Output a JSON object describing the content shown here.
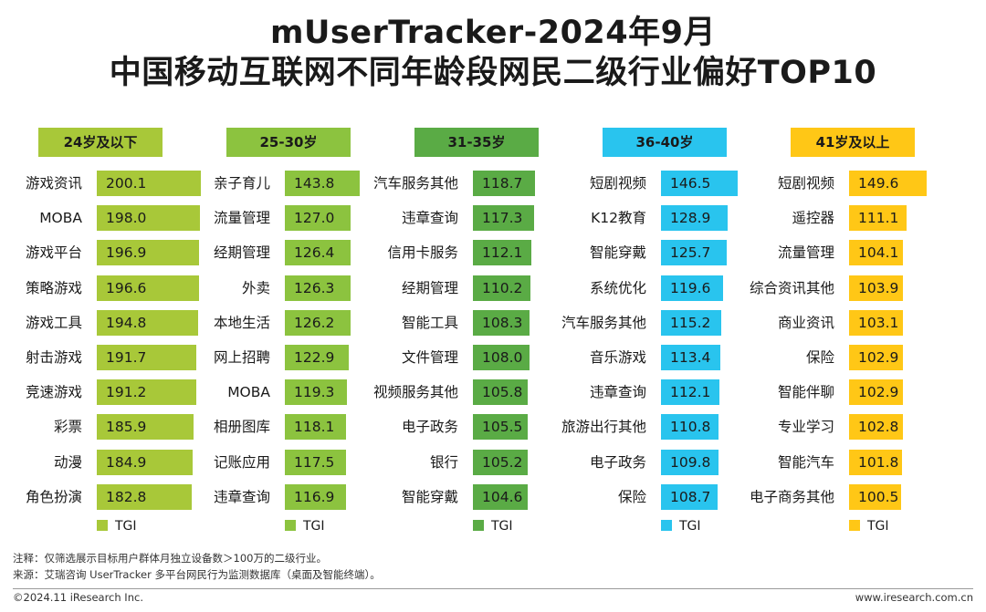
{
  "title_line1": "mUserTracker-2024年9月",
  "title_line2": "中国移动互联网不同年龄段网民二级行业偏好TOP10",
  "chart_data": {
    "type": "bar",
    "orientation": "horizontal",
    "metric": "TGI",
    "panels": [
      {
        "group": "24岁及以下",
        "color": "#a8c839",
        "categories": [
          "游戏资讯",
          "MOBA",
          "游戏平台",
          "策略游戏",
          "游戏工具",
          "射击游戏",
          "竞速游戏",
          "彩票",
          "动漫",
          "角色扮演"
        ],
        "values": [
          200.1,
          198.0,
          196.9,
          196.6,
          194.8,
          191.7,
          191.2,
          185.9,
          184.9,
          182.8
        ],
        "value_labels": [
          "200.1",
          "198.0",
          "196.9",
          "196.6",
          "194.8",
          "191.7",
          "191.2",
          "185.9",
          "184.9",
          "182.8"
        ],
        "legend": "TGI"
      },
      {
        "group": "25-30岁",
        "color": "#8cc33f",
        "categories": [
          "亲子育儿",
          "流量管理",
          "经期管理",
          "外卖",
          "本地生活",
          "网上招聘",
          "MOBA",
          "相册图库",
          "记账应用",
          "违章查询"
        ],
        "values": [
          143.8,
          127.0,
          126.4,
          126.3,
          126.2,
          122.9,
          119.3,
          118.1,
          117.5,
          116.9
        ],
        "value_labels": [
          "143.8",
          "127.0",
          "126.4",
          "126.3",
          "126.2",
          "122.9",
          "119.3",
          "118.1",
          "117.5",
          "116.9"
        ],
        "legend": "TGI"
      },
      {
        "group": "31-35岁",
        "color": "#5aab45",
        "categories": [
          "汽车服务其他",
          "违章查询",
          "信用卡服务",
          "经期管理",
          "智能工具",
          "文件管理",
          "视频服务其他",
          "电子政务",
          "银行",
          "智能穿戴"
        ],
        "values": [
          118.7,
          117.3,
          112.1,
          110.2,
          108.3,
          108.0,
          105.8,
          105.5,
          105.2,
          104.6
        ],
        "value_labels": [
          "118.7",
          "117.3",
          "112.1",
          "110.2",
          "108.3",
          "108.0",
          "105.8",
          "105.5",
          "105.2",
          "104.6"
        ],
        "legend": "TGI"
      },
      {
        "group": "36-40岁",
        "color": "#29c4ee",
        "categories": [
          "短剧视频",
          "K12教育",
          "智能穿戴",
          "系统优化",
          "汽车服务其他",
          "音乐游戏",
          "违章查询",
          "旅游出行其他",
          "电子政务",
          "保险"
        ],
        "values": [
          146.5,
          128.9,
          125.7,
          119.6,
          115.2,
          113.4,
          112.1,
          110.8,
          109.8,
          108.7
        ],
        "value_labels": [
          "146.5",
          "128.9",
          "125.7",
          "119.6",
          "115.2",
          "113.4",
          "112.1",
          "110.8",
          "109.8",
          "108.7"
        ],
        "legend": "TGI"
      },
      {
        "group": "41岁及以上",
        "color": "#ffc716",
        "categories": [
          "短剧视频",
          "遥控器",
          "流量管理",
          "综合资讯其他",
          "商业资讯",
          "保险",
          "智能伴聊",
          "专业学习",
          "智能汽车",
          "电子商务其他"
        ],
        "values": [
          149.6,
          111.1,
          104.1,
          103.9,
          103.1,
          102.9,
          102.9,
          102.8,
          101.8,
          100.5
        ],
        "value_labels": [
          "149.6",
          "111.1",
          "104.1",
          "103.9",
          "103.1",
          "102.9",
          "102.9",
          "102.8",
          "101.8",
          "100.5"
        ],
        "legend": "TGI"
      }
    ]
  },
  "footer": {
    "note": "注释：仅筛选展示目标用户群体月独立设备数＞100万的二级行业。",
    "source": "来源：艾瑞咨询 UserTracker 多平台网民行为监测数据库（桌面及智能终端）。",
    "copyright": "©2024.11 iResearch Inc.",
    "url": "www.iresearch.com.cn"
  }
}
